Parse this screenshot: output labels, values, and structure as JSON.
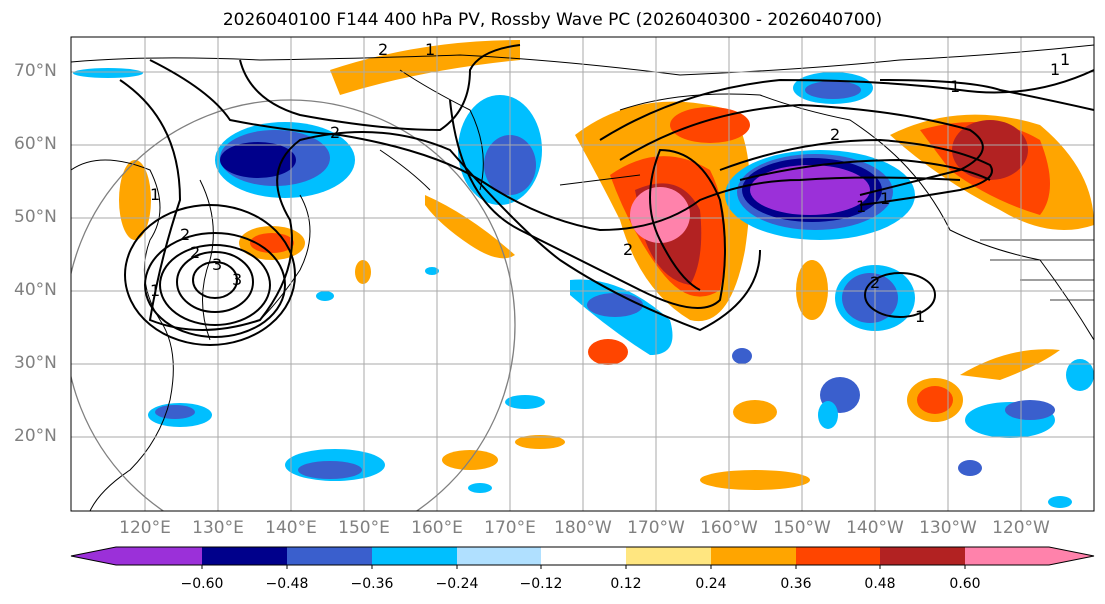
{
  "title": "2026040100 F144 400 hPa PV, Rossby Wave PC (2026040300 - 2026040700)",
  "lat_labels": [
    "70°N",
    "60°N",
    "50°N",
    "40°N",
    "30°N",
    "20°N"
  ],
  "lon_labels": [
    "120°E",
    "130°E",
    "140°E",
    "150°E",
    "160°E",
    "170°E",
    "180°W",
    "170°W",
    "160°W",
    "150°W",
    "140°W",
    "130°W",
    "120°W"
  ],
  "colorbar": {
    "ticks": [
      "−0.60",
      "−0.48",
      "−0.36",
      "−0.24",
      "−0.12",
      "0.12",
      "0.24",
      "0.36",
      "0.48",
      "0.60"
    ],
    "colors": [
      "#9b30d9",
      "#00008b",
      "#3a5fcd",
      "#00bfff",
      "#b0e0ff",
      "#ffffff",
      "#ffe680",
      "#ffa500",
      "#ff4500",
      "#b22222",
      "#ff82ab"
    ]
  },
  "contour_labels": [
    "1",
    "2",
    "2",
    "2",
    "3",
    "3",
    "2",
    "1",
    "2",
    "2",
    "1",
    "1",
    "1",
    "1",
    "2",
    "1",
    "1",
    "1"
  ]
}
